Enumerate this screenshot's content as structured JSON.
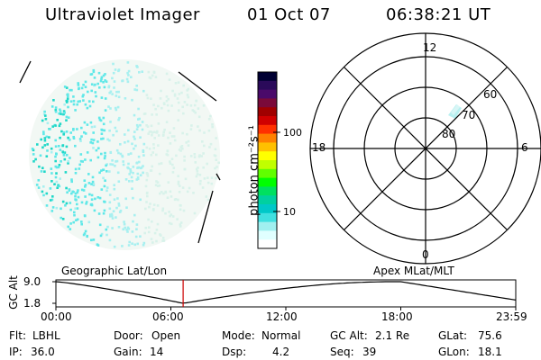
{
  "header": {
    "instrument": "Ultraviolet Imager",
    "date": "01 Oct 07",
    "time": "06:38:21 UT"
  },
  "colorbar": {
    "unit_label": "photon cm⁻²s⁻¹",
    "ticks": [
      "100",
      "10"
    ],
    "ticks_values": [
      100,
      10
    ],
    "scale": "log",
    "colors": [
      "#000033",
      "#2a0a5a",
      "#4a0a6a",
      "#7a0a3a",
      "#a00000",
      "#d00000",
      "#ff3000",
      "#ff8000",
      "#ffc000",
      "#ffff00",
      "#c0ff00",
      "#60ff00",
      "#00ff00",
      "#00e060",
      "#00d0a0",
      "#00c8c8",
      "#40e0e0",
      "#a0f0f0",
      "#e0ffff",
      "#ffffff"
    ]
  },
  "polar_plot": {
    "mlt_labels": {
      "top": "12",
      "bottom": "0",
      "left": "18",
      "right": "6"
    },
    "lat_labels": [
      "60",
      "70",
      "80"
    ],
    "lat_values": [
      60,
      70,
      80
    ]
  },
  "timeline": {
    "y_axis_label": "GC Alt",
    "left_label": "Geographic Lat/Lon",
    "right_label": "Apex MLat/MLT",
    "y_ticks": [
      "9.0",
      "1.8"
    ],
    "y_range": [
      1.8,
      9.0
    ],
    "x_ticks": [
      "00:00",
      "06:00",
      "12:00",
      "18:00",
      "23:59"
    ],
    "current_time_hours": 6.64,
    "marker_color": "#cc0000"
  },
  "info": {
    "flt_label": "Flt:",
    "flt_value": "LBHL",
    "door_label": "Door:",
    "door_value": "Open",
    "mode_label": "Mode:",
    "mode_value": "Normal",
    "gcalt_label": "GC Alt:",
    "gcalt_value": "2.1 Re",
    "glat_label": "GLat:",
    "glat_value": "75.6",
    "ip_label": "IP:",
    "ip_value": "36.0",
    "gain_label": "Gain:",
    "gain_value": "14",
    "dsp_label": "Dsp:",
    "dsp_value": "4.2",
    "seq_label": "Seq:",
    "seq_value": "39",
    "glon_label": "GLon:",
    "glon_value": "18.1"
  }
}
